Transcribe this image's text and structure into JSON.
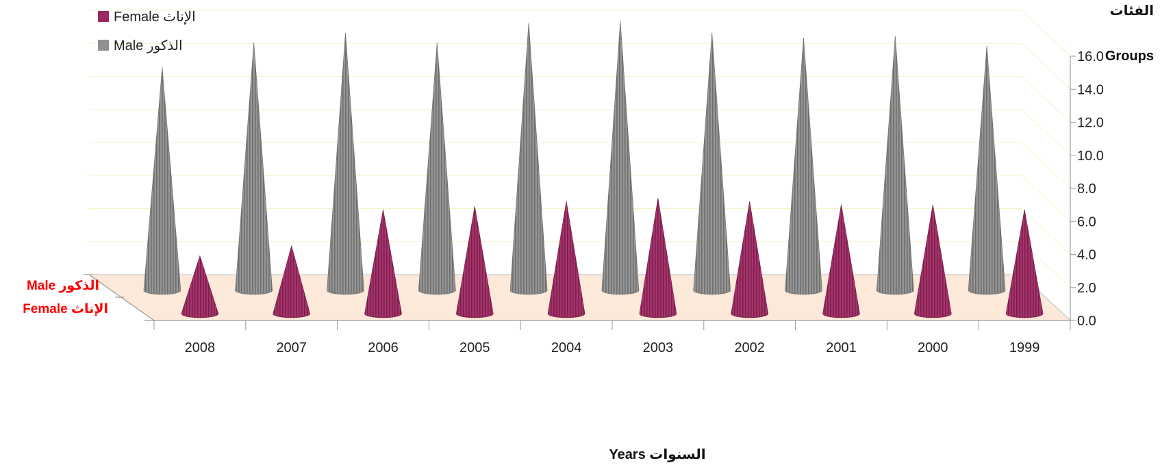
{
  "chart_data": {
    "type": "bar",
    "style": "3d-cone",
    "categories": [
      "2008",
      "2007",
      "2006",
      "2005",
      "2004",
      "2003",
      "2002",
      "2001",
      "2000",
      "1999"
    ],
    "series": [
      {
        "name": "الذكور Male",
        "color": "#909090",
        "values": [
          13.5,
          15.0,
          15.6,
          15.0,
          16.2,
          16.3,
          15.6,
          15.3,
          15.4,
          14.8
        ]
      },
      {
        "name": "الإناث Female",
        "color": "#9b2a60",
        "values": [
          3.5,
          4.1,
          6.3,
          6.5,
          6.8,
          7.0,
          6.8,
          6.6,
          6.6,
          6.3
        ]
      }
    ],
    "ylim": [
      0,
      16
    ],
    "yticks": [
      "0.0",
      "2.0",
      "4.0",
      "6.0",
      "8.0",
      "10.0",
      "12.0",
      "14.0",
      "16.0"
    ],
    "xlabel": "السنوات  Years",
    "ylabel": {
      "ar": "الفئات",
      "en": "Groups"
    },
    "depth_labels": [
      "الذكور Male",
      "الإناث Female"
    ],
    "legend": [
      {
        "label": "الإناث Female",
        "color": "#9b2a60"
      },
      {
        "label": "الذكور Male",
        "color": "#909090"
      }
    ],
    "legend_position": "top-left",
    "grid": true,
    "floor_color": "#fde9d9"
  }
}
